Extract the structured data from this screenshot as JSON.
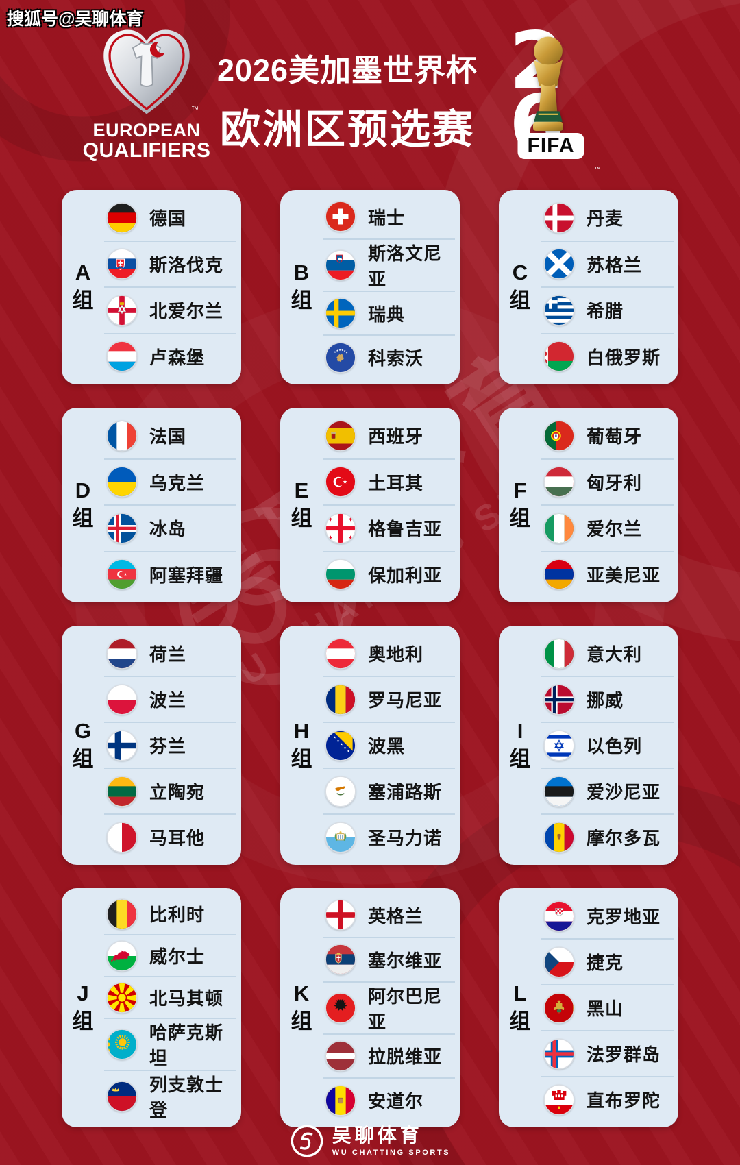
{
  "meta": {
    "bg_color": "#9c1420",
    "card_color": "#dfeaf4",
    "divider_color": "#c2d5e5",
    "accent_red": "#c00d19",
    "text_dark": "#141414"
  },
  "header": {
    "sohu_tag": "搜狐号@吴聊体育",
    "eq_logo": {
      "icon": "european-qualifiers-heart-logo",
      "line1": "EUROPEAN",
      "line2": "QUALIFIERS",
      "tm": "™"
    },
    "title_line1": "2026美加墨世界杯",
    "title_line2": "欧洲区预选赛",
    "fifa_logo": {
      "icon": "world-cup-trophy-icon",
      "digit_top": "2",
      "digit_bottom": "6",
      "wordmark": "FIFA",
      "tm": "™"
    }
  },
  "groups": [
    {
      "letter": "A",
      "label": "组",
      "teams": [
        {
          "name": "德国",
          "flag": "germany"
        },
        {
          "name": "斯洛伐克",
          "flag": "slovakia"
        },
        {
          "name": "北爱尔兰",
          "flag": "nireland"
        },
        {
          "name": "卢森堡",
          "flag": "luxembourg"
        }
      ]
    },
    {
      "letter": "B",
      "label": "组",
      "teams": [
        {
          "name": "瑞士",
          "flag": "switzerland"
        },
        {
          "name": "斯洛文尼亚",
          "flag": "slovenia"
        },
        {
          "name": "瑞典",
          "flag": "sweden"
        },
        {
          "name": "科索沃",
          "flag": "kosovo"
        }
      ]
    },
    {
      "letter": "C",
      "label": "组",
      "teams": [
        {
          "name": "丹麦",
          "flag": "denmark"
        },
        {
          "name": "苏格兰",
          "flag": "scotland"
        },
        {
          "name": "希腊",
          "flag": "greece"
        },
        {
          "name": "白俄罗斯",
          "flag": "belarus"
        }
      ]
    },
    {
      "letter": "D",
      "label": "组",
      "teams": [
        {
          "name": "法国",
          "flag": "france"
        },
        {
          "name": "乌克兰",
          "flag": "ukraine"
        },
        {
          "name": "冰岛",
          "flag": "iceland"
        },
        {
          "name": "阿塞拜疆",
          "flag": "azerbaijan"
        }
      ]
    },
    {
      "letter": "E",
      "label": "组",
      "teams": [
        {
          "name": "西班牙",
          "flag": "spain"
        },
        {
          "name": "土耳其",
          "flag": "turkey"
        },
        {
          "name": "格鲁吉亚",
          "flag": "georgia"
        },
        {
          "name": "保加利亚",
          "flag": "bulgaria"
        }
      ]
    },
    {
      "letter": "F",
      "label": "组",
      "teams": [
        {
          "name": "葡萄牙",
          "flag": "portugal"
        },
        {
          "name": "匈牙利",
          "flag": "hungary"
        },
        {
          "name": "爱尔兰",
          "flag": "ireland"
        },
        {
          "name": "亚美尼亚",
          "flag": "armenia"
        }
      ]
    },
    {
      "letter": "G",
      "label": "组",
      "teams": [
        {
          "name": "荷兰",
          "flag": "netherlands"
        },
        {
          "name": "波兰",
          "flag": "poland"
        },
        {
          "name": "芬兰",
          "flag": "finland"
        },
        {
          "name": "立陶宛",
          "flag": "lithuania"
        },
        {
          "name": "马耳他",
          "flag": "malta"
        }
      ]
    },
    {
      "letter": "H",
      "label": "组",
      "teams": [
        {
          "name": "奥地利",
          "flag": "austria"
        },
        {
          "name": "罗马尼亚",
          "flag": "romania"
        },
        {
          "name": "波黑",
          "flag": "bosnia"
        },
        {
          "name": "塞浦路斯",
          "flag": "cyprus"
        },
        {
          "name": "圣马力诺",
          "flag": "sanmarino"
        }
      ]
    },
    {
      "letter": "I",
      "label": "组",
      "teams": [
        {
          "name": "意大利",
          "flag": "italy"
        },
        {
          "name": "挪威",
          "flag": "norway"
        },
        {
          "name": "以色列",
          "flag": "israel"
        },
        {
          "name": "爱沙尼亚",
          "flag": "estonia"
        },
        {
          "name": "摩尔多瓦",
          "flag": "moldova"
        }
      ]
    },
    {
      "letter": "J",
      "label": "组",
      "teams": [
        {
          "name": "比利时",
          "flag": "belgium"
        },
        {
          "name": "威尔士",
          "flag": "wales"
        },
        {
          "name": "北马其顿",
          "flag": "macedonia"
        },
        {
          "name": "哈萨克斯坦",
          "flag": "kazakhstan"
        },
        {
          "name": "列支敦士登",
          "flag": "liechtenstein"
        }
      ]
    },
    {
      "letter": "K",
      "label": "组",
      "teams": [
        {
          "name": "英格兰",
          "flag": "england"
        },
        {
          "name": "塞尔维亚",
          "flag": "serbia"
        },
        {
          "name": "阿尔巴尼亚",
          "flag": "albania"
        },
        {
          "name": "拉脱维亚",
          "flag": "latvia"
        },
        {
          "name": "安道尔",
          "flag": "andorra"
        }
      ]
    },
    {
      "letter": "L",
      "label": "组",
      "teams": [
        {
          "name": "克罗地亚",
          "flag": "croatia"
        },
        {
          "name": "捷克",
          "flag": "czechia"
        },
        {
          "name": "黑山",
          "flag": "montenegro"
        },
        {
          "name": "法罗群岛",
          "flag": "faroe"
        },
        {
          "name": "直布罗陀",
          "flag": "gibraltar"
        }
      ]
    }
  ],
  "watermark": {
    "cn": "吴聊体育",
    "en": "WU CHATTING SPORTS"
  },
  "footer": {
    "icon": "wu-chatting-sports-logo",
    "cn": "吴聊体育",
    "en": "WU CHATTING SPORTS"
  }
}
